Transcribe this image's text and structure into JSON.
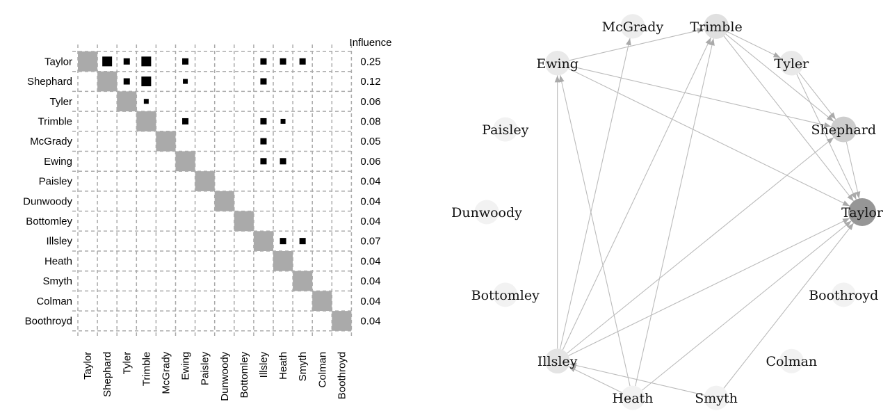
{
  "matrix": {
    "influence_label": "Influence",
    "names": [
      "Taylor",
      "Shephard",
      "Tyler",
      "Trimble",
      "McGrady",
      "Ewing",
      "Paisley",
      "Dunwoody",
      "Bottomley",
      "Illsley",
      "Heath",
      "Smyth",
      "Colman",
      "Boothroyd"
    ],
    "influence": [
      0.25,
      0.12,
      0.06,
      0.08,
      0.05,
      0.06,
      0.04,
      0.04,
      0.04,
      0.07,
      0.04,
      0.04,
      0.04,
      0.04
    ],
    "cells": [
      {
        "row": 0,
        "col": 1,
        "size": "large"
      },
      {
        "row": 0,
        "col": 2,
        "size": "medium"
      },
      {
        "row": 0,
        "col": 3,
        "size": "large"
      },
      {
        "row": 0,
        "col": 5,
        "size": "medium"
      },
      {
        "row": 0,
        "col": 9,
        "size": "medium"
      },
      {
        "row": 0,
        "col": 10,
        "size": "medium"
      },
      {
        "row": 0,
        "col": 11,
        "size": "medium"
      },
      {
        "row": 1,
        "col": 2,
        "size": "medium"
      },
      {
        "row": 1,
        "col": 3,
        "size": "large"
      },
      {
        "row": 1,
        "col": 5,
        "size": "small"
      },
      {
        "row": 1,
        "col": 9,
        "size": "medium"
      },
      {
        "row": 2,
        "col": 3,
        "size": "small"
      },
      {
        "row": 3,
        "col": 5,
        "size": "medium"
      },
      {
        "row": 3,
        "col": 9,
        "size": "medium"
      },
      {
        "row": 3,
        "col": 10,
        "size": "small"
      },
      {
        "row": 4,
        "col": 9,
        "size": "medium"
      },
      {
        "row": 5,
        "col": 9,
        "size": "medium"
      },
      {
        "row": 5,
        "col": 10,
        "size": "medium"
      },
      {
        "row": 9,
        "col": 10,
        "size": "medium"
      },
      {
        "row": 9,
        "col": 11,
        "size": "medium"
      }
    ]
  }
}
